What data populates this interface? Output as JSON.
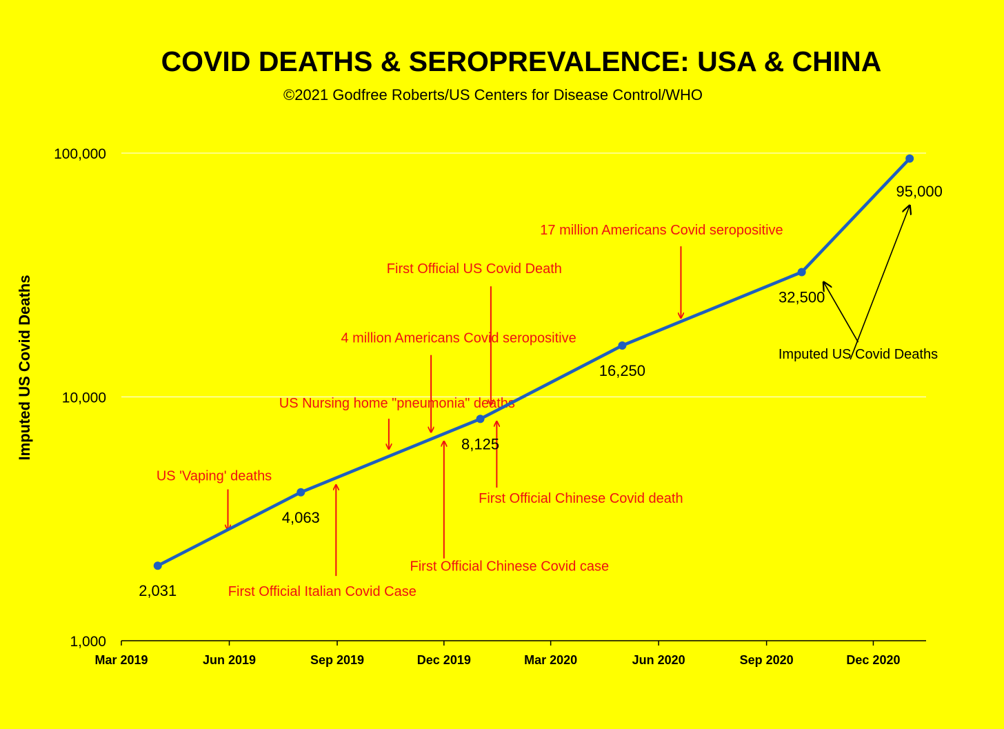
{
  "chart_data": {
    "type": "line",
    "title": "COVID DEATHS & SEROPREVALENCE: USA & CHINA",
    "subtitle": "©2021 Godfree Roberts/US Centers for Disease Control/WHO",
    "ylabel": "Imputed US Covid Deaths",
    "xlabel": "",
    "y_scale": "log",
    "ylim": [
      1000,
      100000
    ],
    "xlim": [
      "2019-03-01",
      "2021-01-15"
    ],
    "grid": "horizontal",
    "y_ticks": [
      {
        "value": 1000,
        "label": "1,000"
      },
      {
        "value": 10000,
        "label": "10,000"
      },
      {
        "value": 100000,
        "label": "100,000"
      }
    ],
    "x_ticks": [
      {
        "date": "2019-03-01",
        "label": "Mar 2019"
      },
      {
        "date": "2019-06-01",
        "label": "Jun 2019"
      },
      {
        "date": "2019-09-01",
        "label": "Sep 2019"
      },
      {
        "date": "2019-12-01",
        "label": "Dec 2019"
      },
      {
        "date": "2020-03-01",
        "label": "Mar 2020"
      },
      {
        "date": "2020-06-01",
        "label": "Jun 2020"
      },
      {
        "date": "2020-09-01",
        "label": "Sep 2020"
      },
      {
        "date": "2020-12-01",
        "label": "Dec 2020"
      }
    ],
    "series": [
      {
        "color": "#1f5fbf",
        "points": [
          {
            "x": "2019-04-01",
            "y": 2031,
            "label": "2,031"
          },
          {
            "x": "2019-08-01",
            "y": 4063,
            "label": "4,063"
          },
          {
            "x": "2020-01-01",
            "y": 8125,
            "label": "8,125"
          },
          {
            "x": "2020-05-01",
            "y": 16250,
            "label": "16,250"
          },
          {
            "x": "2020-10-01",
            "y": 32500,
            "label": "32,500"
          },
          {
            "x": "2021-01-01",
            "y": 95000,
            "label": "95,000"
          }
        ]
      }
    ],
    "annotations": [
      {
        "text": "US 'Vaping' deaths",
        "color": "#ee1111",
        "x": "2019-06-01",
        "y": 2700,
        "direction": "down"
      },
      {
        "text": "US Nursing home \"pneumonia\" deaths",
        "color": "#ee1111",
        "x": "2019-10-15",
        "y": 5800,
        "direction": "down"
      },
      {
        "text": "4 million  Americans Covid seropositive",
        "color": "#ee1111",
        "x": "2019-11-20",
        "y": 6800,
        "direction": "down"
      },
      {
        "text": "First Official US Covid Death",
        "color": "#ee1111",
        "x": "2020-01-10",
        "y": 8800,
        "direction": "down"
      },
      {
        "text": "17 million Americans Covid seropositive",
        "color": "#ee1111",
        "x": "2020-06-20",
        "y": 20000,
        "direction": "down"
      },
      {
        "text": "First Official Italian Covid Case",
        "color": "#ee1111",
        "x": "2019-08-31",
        "y": 4500,
        "direction": "up"
      },
      {
        "text": "First Official Chinese Covid case",
        "color": "#ee1111",
        "x": "2019-12-01",
        "y": 6800,
        "direction": "up"
      },
      {
        "text": "First Official Chinese Covid death",
        "color": "#ee1111",
        "x": "2020-01-15",
        "y": 8200,
        "direction": "up"
      },
      {
        "text": "Imputed US Covid Deaths",
        "color": "#000000",
        "x": "2020-10-15",
        "y": 33000,
        "direction": "up"
      },
      {
        "text": "Imputed US Covid Deaths",
        "color": "#000000",
        "x": "2021-01-01",
        "y": 65000,
        "direction": "up"
      }
    ]
  }
}
